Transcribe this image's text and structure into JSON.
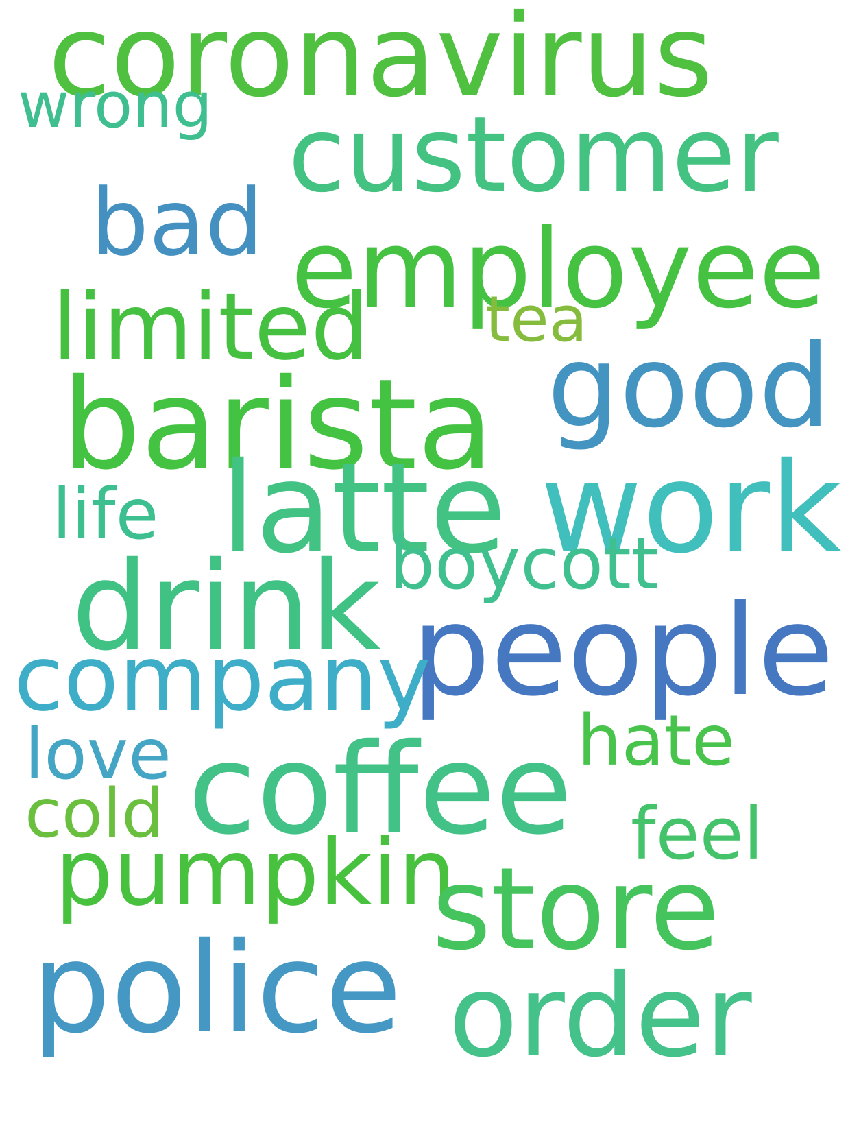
{
  "words": [
    {
      "id": "coronavirus",
      "text": "coronavirus",
      "color": "#4fc040"
    },
    {
      "id": "wrong",
      "text": "wrong",
      "color": "#3fbf8f"
    },
    {
      "id": "customer",
      "text": "customer",
      "color": "#44c282"
    },
    {
      "id": "bad",
      "text": "bad",
      "color": "#4490c0"
    },
    {
      "id": "employee",
      "text": "employee",
      "color": "#46c242"
    },
    {
      "id": "limited",
      "text": "limited",
      "color": "#45c040"
    },
    {
      "id": "tea",
      "text": "tea",
      "color": "#86bc3d"
    },
    {
      "id": "good",
      "text": "good",
      "color": "#4494c2"
    },
    {
      "id": "barista",
      "text": "barista",
      "color": "#44c242"
    },
    {
      "id": "latte",
      "text": "latte",
      "color": "#42c384"
    },
    {
      "id": "work",
      "text": "work",
      "color": "#40bfbd"
    },
    {
      "id": "life",
      "text": "life",
      "color": "#3dbf90"
    },
    {
      "id": "boycott",
      "text": "boycott",
      "color": "#40c08e"
    },
    {
      "id": "drink",
      "text": "drink",
      "color": "#40c284"
    },
    {
      "id": "people",
      "text": "people",
      "color": "#4678c2"
    },
    {
      "id": "company",
      "text": "company",
      "color": "#3eaec8"
    },
    {
      "id": "hate",
      "text": "hate",
      "color": "#48c44d"
    },
    {
      "id": "love",
      "text": "love",
      "color": "#44a6c4"
    },
    {
      "id": "coffee",
      "text": "coffee",
      "color": "#42c286"
    },
    {
      "id": "cold",
      "text": "cold",
      "color": "#6ac03e"
    },
    {
      "id": "feel",
      "text": "feel",
      "color": "#45c36a"
    },
    {
      "id": "pumpkin",
      "text": "pumpkin",
      "color": "#48c13f"
    },
    {
      "id": "store",
      "text": "store",
      "color": "#45c35c"
    },
    {
      "id": "police",
      "text": "police",
      "color": "#4498c3"
    },
    {
      "id": "order",
      "text": "order",
      "color": "#44c28a"
    }
  ]
}
